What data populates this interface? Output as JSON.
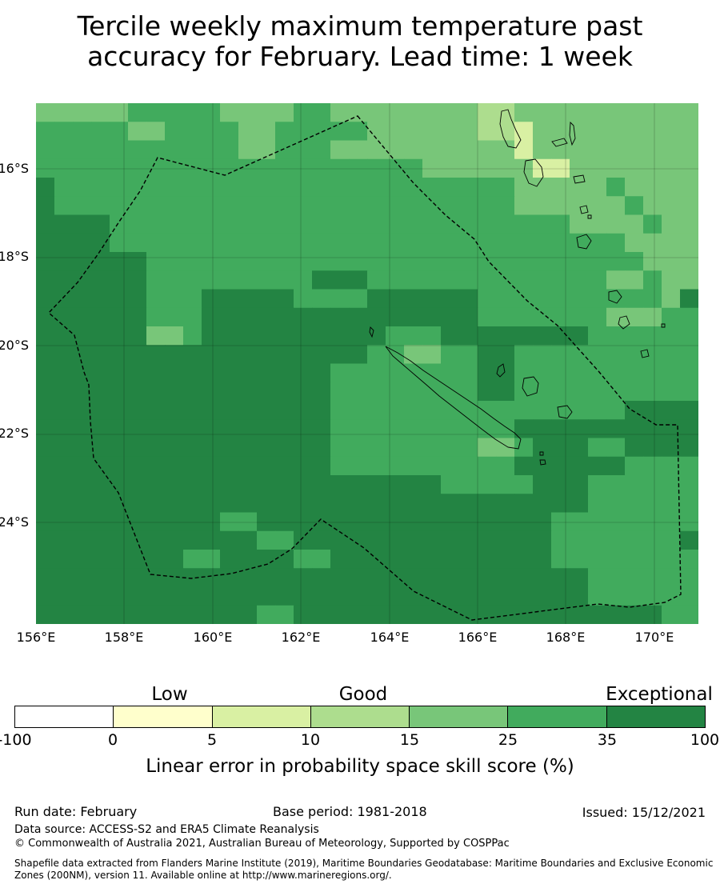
{
  "title_line1": "Tercile weekly maximum temperature past",
  "title_line2": "accuracy for February. Lead time: 1 week",
  "map": {
    "lon_range": [
      156,
      171
    ],
    "lat_range": [
      -26.25,
      -14.45
    ],
    "lon_ticks": [
      "156°E",
      "158°E",
      "160°E",
      "162°E",
      "164°E",
      "166°E",
      "168°E",
      "170°E"
    ],
    "lat_ticks": [
      "16°S",
      "18°S",
      "20°S",
      "22°S",
      "24°S"
    ],
    "grid": true,
    "boundary": "dashed-eez"
  },
  "legend": {
    "categories": [
      "Low",
      "Good",
      "Exceptional"
    ],
    "ticks": [
      "-100",
      "0",
      "5",
      "10",
      "15",
      "25",
      "35",
      "100"
    ],
    "colors": [
      "#ffffff",
      "#ffffcc",
      "#d9f0a3",
      "#addd8e",
      "#78c679",
      "#41ab5d",
      "#238443"
    ],
    "title": "Linear error in probability space skill score (%)"
  },
  "footer": {
    "run_date": "Run date: February",
    "base_period": "Base period: 1981-2018",
    "issued": "Issued: 15/12/2021",
    "data_source": "Data source: ACCESS-S2 and ERA5 Climate Reanalysis",
    "copyright": "© Commonwealth of Australia 2021, Australian Bureau of Meteorology, Supported by COSPPac",
    "shapefile": "Shapefile data extracted from Flanders Marine Institute (2019), Maritime Boundaries Geodatabase: Maritime Boundaries and Exclusive Economic Zones (200NM), version 11. Available online at http://www.marineregions.org/."
  }
}
